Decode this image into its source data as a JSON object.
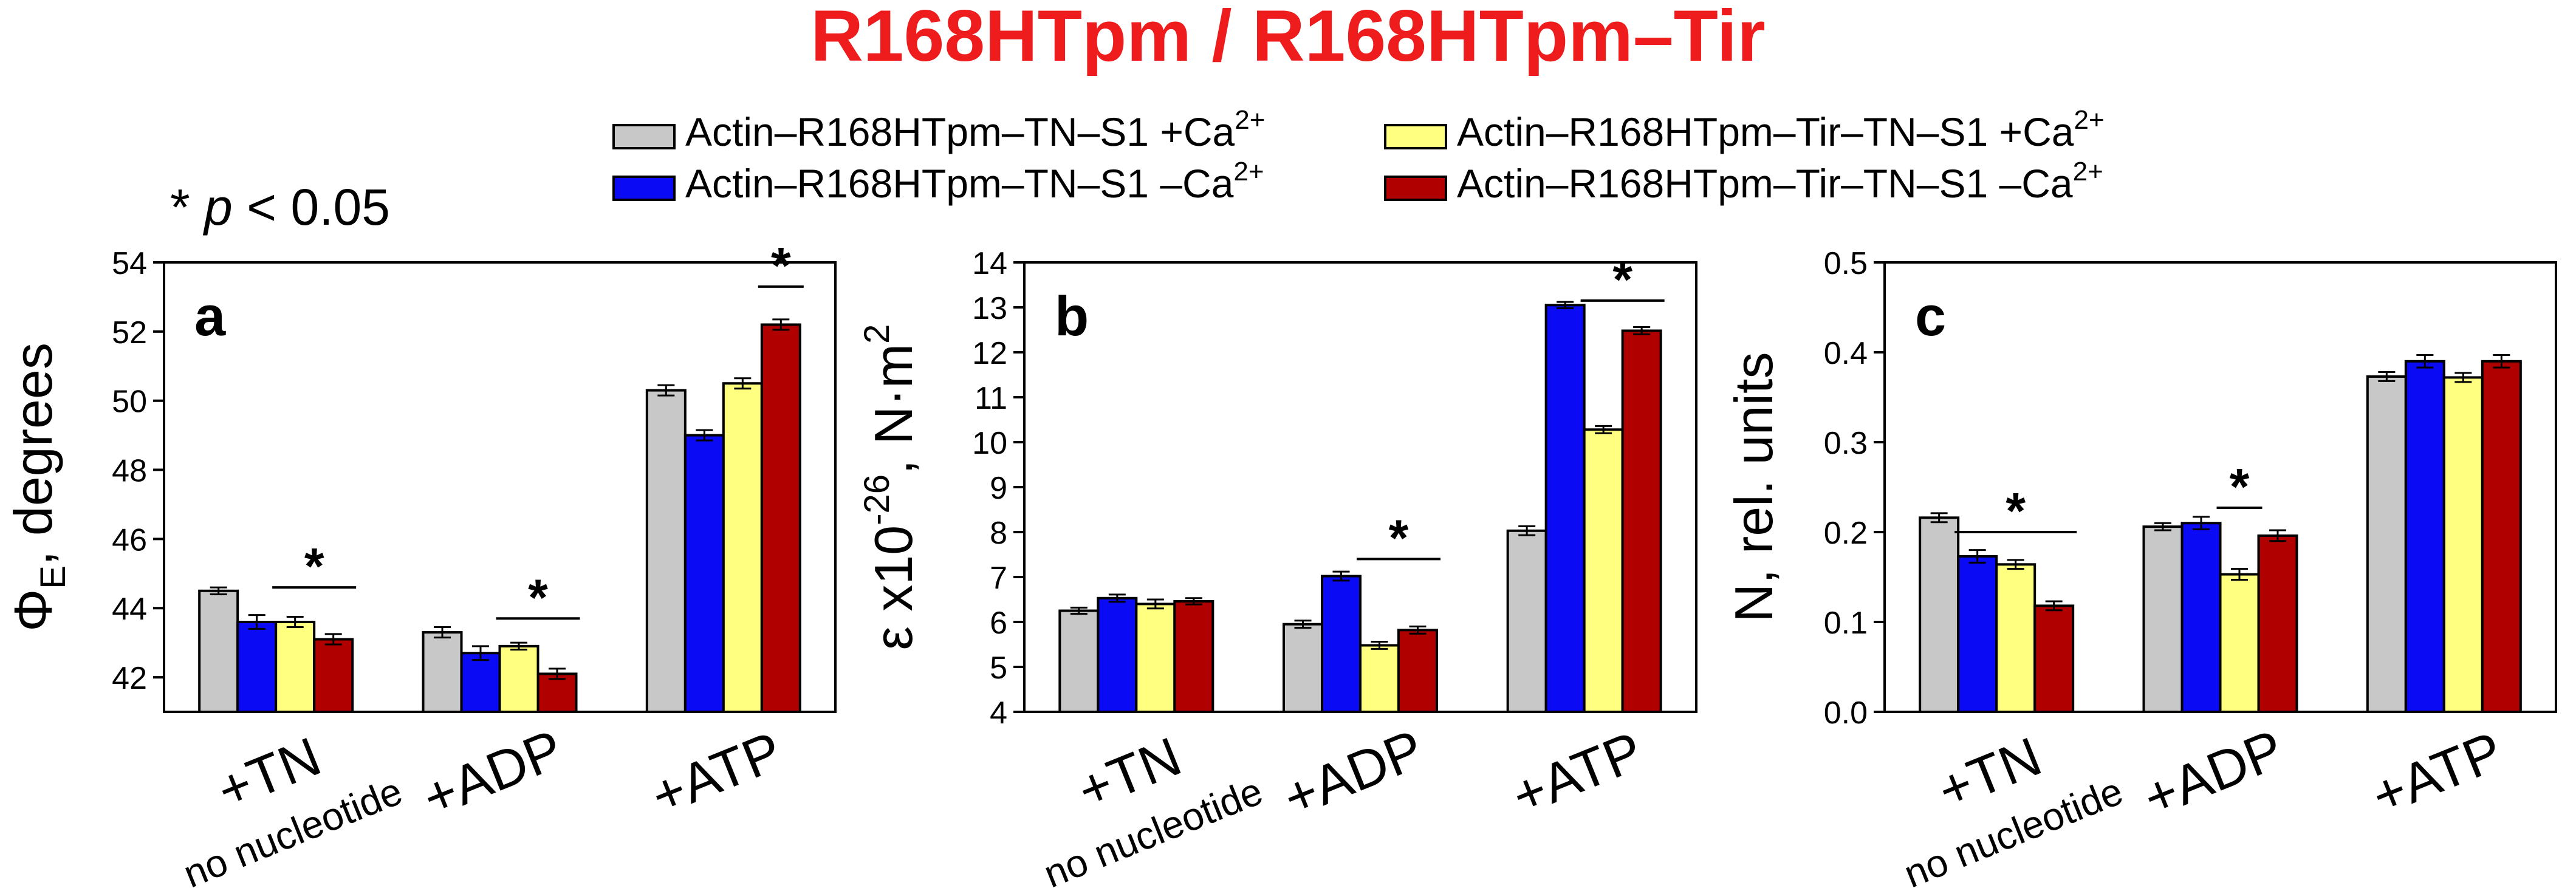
{
  "title": "R168HTpm / R168HTpm–Tir",
  "title_color": "#ee1c1c",
  "significance_note": {
    "star": "* ",
    "p": "p",
    "rest": " < 0.05"
  },
  "legend": {
    "placement": "top-center",
    "entries": [
      {
        "label": "Actin–R168HTpm–TN–S1 +Ca",
        "sup": "2+",
        "color": "#c8c8c8"
      },
      {
        "label": "Actin–R168HTpm–TN–S1 –Ca",
        "sup": "2+",
        "color": "#0a0af5"
      },
      {
        "label": "Actin–R168HTpm–Tir–TN–S1 +Ca",
        "sup": "2+",
        "color": "#ffff80"
      },
      {
        "label": "Actin–R168HTpm–Tir–TN–S1 –Ca",
        "sup": "2+",
        "color": "#b00000"
      }
    ]
  },
  "chart_data": [
    {
      "type": "bar",
      "panel_label": "a",
      "ylabel": {
        "main": "Φ",
        "sub": "E",
        "rest": ", degrees"
      },
      "ylim": [
        41,
        54
      ],
      "yticks": [
        "42",
        "44",
        "46",
        "48",
        "50",
        "52",
        "54"
      ],
      "categories": [
        [
          "+TN",
          "no nucleotide"
        ],
        [
          "+ADP"
        ],
        [
          "+ATP"
        ]
      ],
      "series": [
        {
          "name": "Actin–R168HTpm–TN–S1 +Ca2+",
          "values": [
            44.5,
            43.3,
            50.3
          ],
          "errors": [
            0.1,
            0.15,
            0.15
          ]
        },
        {
          "name": "Actin–R168HTpm–TN–S1 –Ca2+",
          "values": [
            43.6,
            42.7,
            49.0
          ],
          "errors": [
            0.2,
            0.2,
            0.15
          ]
        },
        {
          "name": "Actin–R168HTpm–Tir–TN–S1 +Ca2+",
          "values": [
            43.6,
            42.9,
            50.5
          ],
          "errors": [
            0.15,
            0.1,
            0.15
          ]
        },
        {
          "name": "Actin–R168HTpm–Tir–TN–S1 –Ca2+",
          "values": [
            43.1,
            42.1,
            52.2
          ],
          "errors": [
            0.15,
            0.15,
            0.15
          ]
        }
      ],
      "significance": [
        {
          "category": 0,
          "from": 2,
          "to": 3,
          "y": 44.6,
          "label": "*"
        },
        {
          "category": 1,
          "from": 2,
          "to": 3,
          "y": 43.7,
          "label": "*"
        },
        {
          "category": 2,
          "from": 3,
          "to": 3,
          "y": 53.3,
          "label": "*"
        }
      ]
    },
    {
      "type": "bar",
      "panel_label": "b",
      "ylabel": {
        "main": "ε x10",
        "sup": "-26",
        "rest": ", N·m",
        "sup2": "2"
      },
      "ylim": [
        4,
        14
      ],
      "yticks": [
        "4",
        "5",
        "6",
        "7",
        "8",
        "9",
        "10",
        "11",
        "12",
        "13",
        "14"
      ],
      "categories": [
        [
          "+TN",
          "no nucleotide"
        ],
        [
          "+ADP"
        ],
        [
          "+ATP"
        ]
      ],
      "series": [
        {
          "name": "Actin–R168HTpm–TN–S1 +Ca2+",
          "values": [
            6.25,
            5.95,
            8.03
          ],
          "errors": [
            0.07,
            0.08,
            0.1
          ]
        },
        {
          "name": "Actin–R168HTpm–TN–S1 –Ca2+",
          "values": [
            6.53,
            7.02,
            13.05
          ],
          "errors": [
            0.08,
            0.1,
            0.07
          ]
        },
        {
          "name": "Actin–R168HTpm–Tir–TN–S1 +Ca2+",
          "values": [
            6.4,
            5.48,
            10.28
          ],
          "errors": [
            0.1,
            0.08,
            0.08
          ]
        },
        {
          "name": "Actin–R168HTpm–Tir–TN–S1 –Ca2+",
          "values": [
            6.46,
            5.82,
            12.48
          ],
          "errors": [
            0.07,
            0.08,
            0.08
          ]
        }
      ],
      "significance": [
        {
          "category": 1,
          "from": 2,
          "to": 3,
          "y": 7.4,
          "label": "*"
        },
        {
          "category": 2,
          "from": 2,
          "to": 3,
          "y": 13.15,
          "label": "*"
        }
      ]
    },
    {
      "type": "bar",
      "panel_label": "c",
      "ylabel": {
        "main": "N, rel. units"
      },
      "ylim": [
        0,
        0.5
      ],
      "yticks": [
        "0.0",
        "0.1",
        "0.2",
        "0.3",
        "0.4",
        "0.5"
      ],
      "categories": [
        [
          "+TN",
          "no nucleotide"
        ],
        [
          "+ADP"
        ],
        [
          "+ATP"
        ]
      ],
      "series": [
        {
          "name": "Actin–R168HTpm–TN–S1 +Ca2+",
          "values": [
            0.216,
            0.206,
            0.373
          ],
          "errors": [
            0.005,
            0.004,
            0.005
          ]
        },
        {
          "name": "Actin–R168HTpm–TN–S1 –Ca2+",
          "values": [
            0.173,
            0.21,
            0.39
          ],
          "errors": [
            0.007,
            0.007,
            0.007
          ]
        },
        {
          "name": "Actin–R168HTpm–Tir–TN–S1 +Ca2+",
          "values": [
            0.164,
            0.153,
            0.372
          ],
          "errors": [
            0.005,
            0.006,
            0.005
          ]
        },
        {
          "name": "Actin–R168HTpm–Tir–TN–S1 –Ca2+",
          "values": [
            0.118,
            0.196,
            0.39
          ],
          "errors": [
            0.005,
            0.006,
            0.007
          ]
        }
      ],
      "significance": [
        {
          "category": 0,
          "from": 1,
          "to": 3,
          "y": 0.2,
          "label": "*"
        },
        {
          "category": 1,
          "from": 2,
          "to": 2,
          "y": 0.227,
          "label": "*"
        }
      ]
    }
  ]
}
